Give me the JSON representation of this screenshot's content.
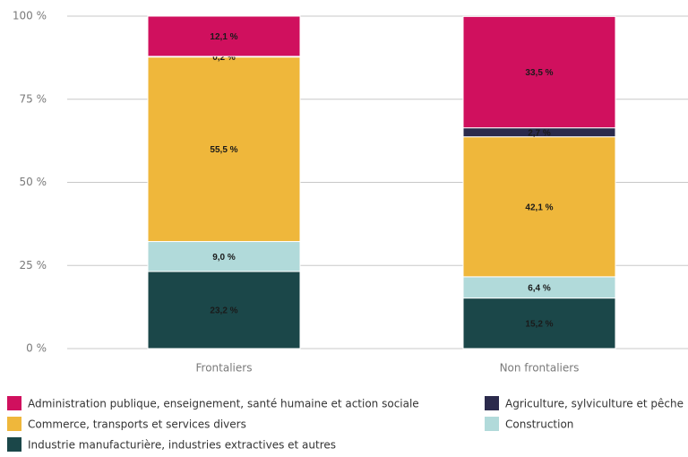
{
  "chart_data": {
    "type": "stacked_bar",
    "categories": [
      "Frontaliers",
      "Non frontaliers"
    ],
    "series": [
      {
        "name": "Industrie manufacturière, industries extractives et autres",
        "color": "#1b4749",
        "values": [
          23.2,
          15.2
        ],
        "value_labels": [
          "23,2 %",
          "15,2 %"
        ]
      },
      {
        "name": "Construction",
        "color": "#b1dada",
        "values": [
          9.0,
          6.4
        ],
        "value_labels": [
          "9,0 %",
          "6,4 %"
        ]
      },
      {
        "name": "Commerce, transports et services divers",
        "color": "#efb73b",
        "values": [
          55.5,
          42.1
        ],
        "value_labels": [
          "55,5 %",
          "42,1 %"
        ]
      },
      {
        "name": "Agriculture, sylviculture et pêche",
        "color": "#2b2a4c",
        "values": [
          0.2,
          2.7
        ],
        "value_labels": [
          "0,2 %",
          "2,7 %"
        ]
      },
      {
        "name": "Administration publique, enseignement, santé humaine et action sociale",
        "color": "#d0105e",
        "values": [
          12.1,
          33.5
        ],
        "value_labels": [
          "12,1 %",
          "33,5 %"
        ]
      }
    ],
    "ylim": [
      0,
      100
    ],
    "yticks": [
      {
        "value": 0,
        "label": "0 %"
      },
      {
        "value": 25,
        "label": "25 %"
      },
      {
        "value": 50,
        "label": "50 %"
      },
      {
        "value": 75,
        "label": "75 %"
      },
      {
        "value": 100,
        "label": "100 %"
      }
    ],
    "grid": true
  }
}
